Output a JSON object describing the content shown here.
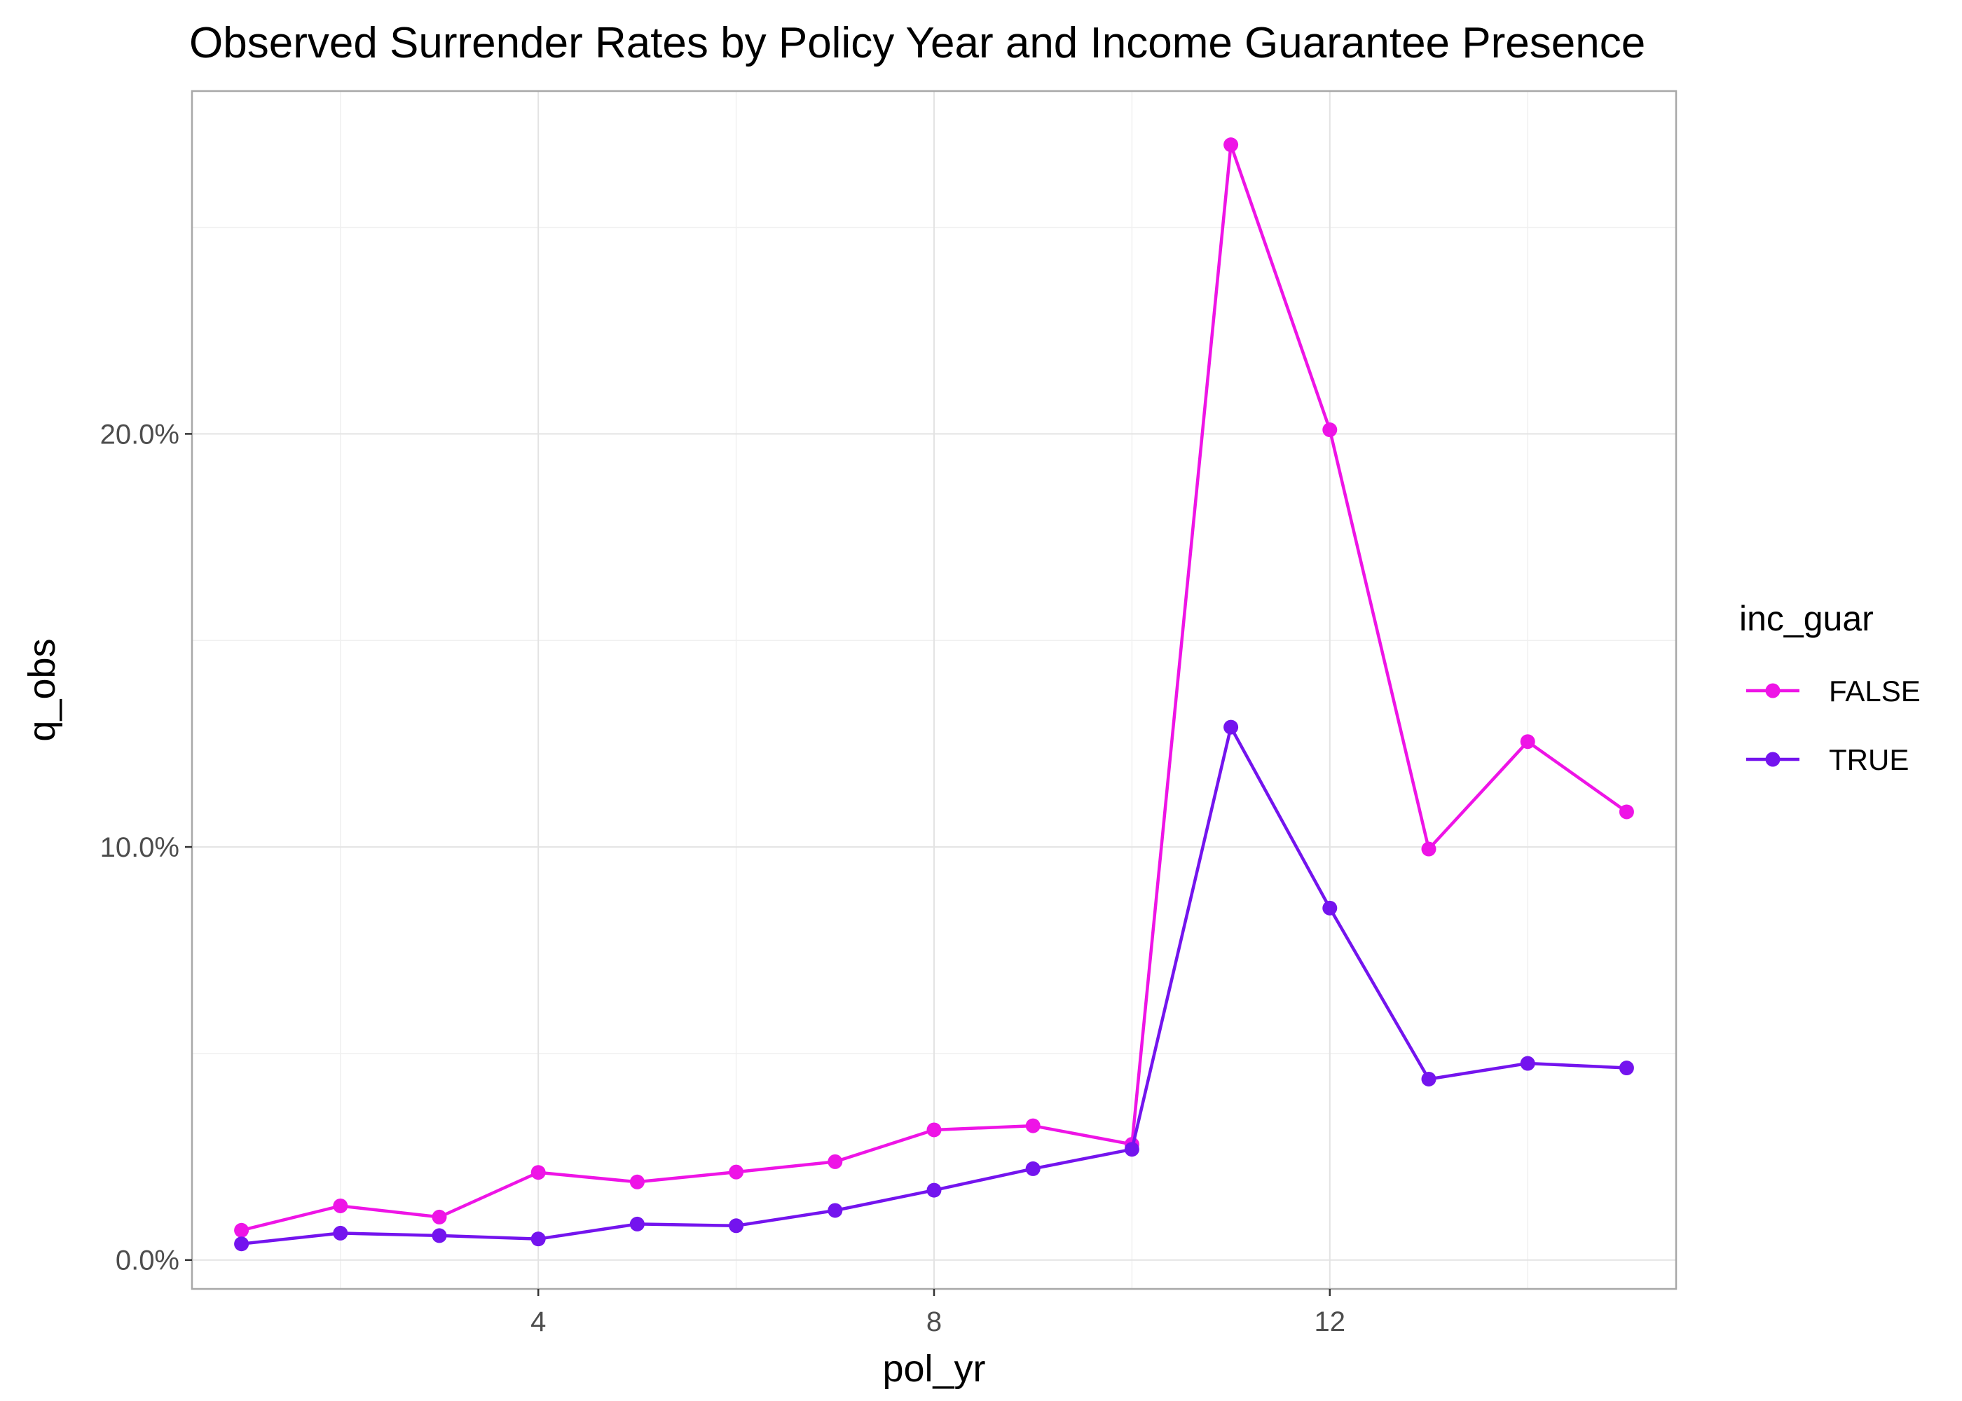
{
  "chart_data": {
    "type": "line",
    "title": "Observed Surrender Rates by Policy Year and Income Guarantee Presence",
    "xlabel": "pol_yr",
    "ylabel": "q_obs",
    "xlim": [
      0.5,
      15.5
    ],
    "ylim": [
      -0.007,
      0.283
    ],
    "x_ticks": [
      4,
      8,
      12
    ],
    "x_tick_labels": [
      "4",
      "8",
      "12"
    ],
    "y_ticks": [
      0.0,
      0.1,
      0.2
    ],
    "y_tick_labels": [
      "0.0%",
      "10.0%",
      "20.0%"
    ],
    "grid": true,
    "legend_position": "right",
    "legend_title": "inc_guar",
    "x": [
      1,
      2,
      3,
      4,
      5,
      6,
      7,
      8,
      9,
      10,
      11,
      12,
      13,
      14,
      15
    ],
    "series": [
      {
        "name": "FALSE",
        "color": "#EE14E6",
        "values": [
          0.0072,
          0.0131,
          0.0104,
          0.0212,
          0.0189,
          0.0213,
          0.0238,
          0.0315,
          0.0325,
          0.028,
          0.27,
          0.201,
          0.0995,
          0.1255,
          0.1085
        ]
      },
      {
        "name": "TRUE",
        "color": "#7414EE",
        "values": [
          0.0039,
          0.0065,
          0.0059,
          0.0051,
          0.0087,
          0.0083,
          0.012,
          0.0169,
          0.0221,
          0.0268,
          0.129,
          0.0852,
          0.0438,
          0.0476,
          0.0465
        ]
      }
    ]
  }
}
